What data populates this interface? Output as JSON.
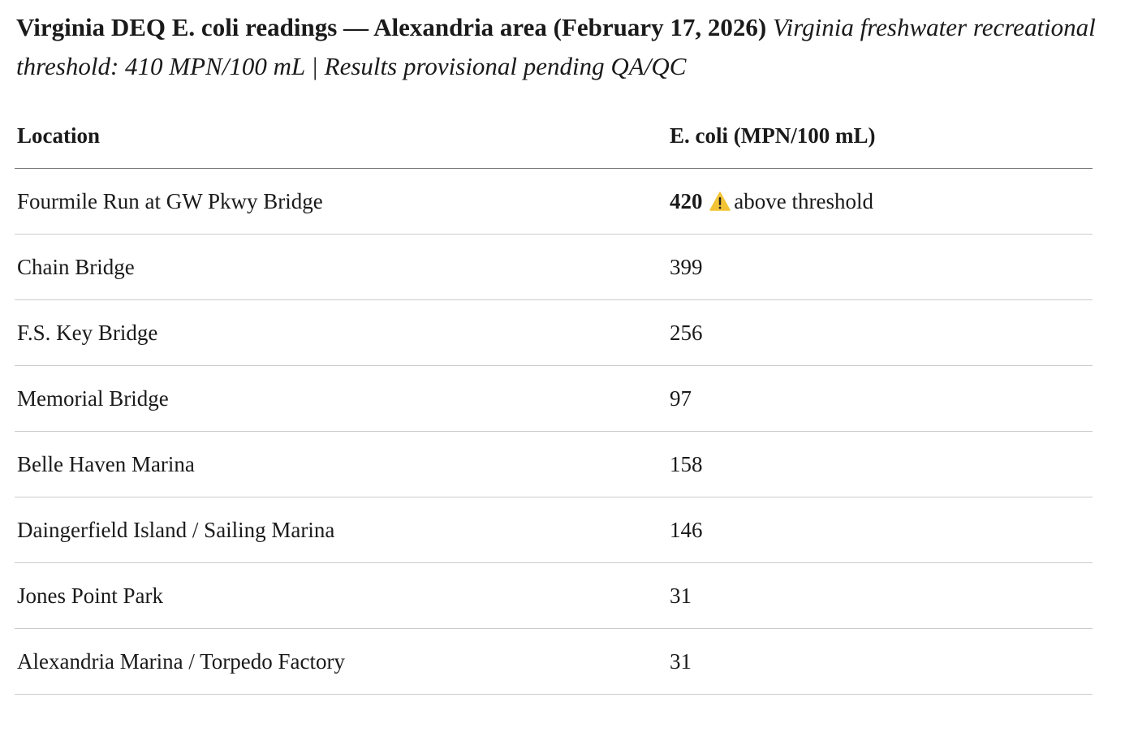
{
  "title": "Virginia DEQ E. coli readings — Alexandria area (February 17, 2026)",
  "subtitle": "Virginia freshwater recreational threshold: 410 MPN/100 mL | Results provisional pending QA/QC",
  "table": {
    "headers": [
      "Location",
      "E. coli (MPN/100 mL)"
    ],
    "rows": [
      {
        "location": "Fourmile Run at GW Pkwy Bridge",
        "value": "420",
        "note": "above threshold",
        "flag": "warning-icon"
      },
      {
        "location": "Chain Bridge",
        "value": "399"
      },
      {
        "location": "F.S. Key Bridge",
        "value": "256"
      },
      {
        "location": "Memorial Bridge",
        "value": "97"
      },
      {
        "location": "Belle Haven Marina",
        "value": "158"
      },
      {
        "location": "Daingerfield Island / Sailing Marina",
        "value": "146"
      },
      {
        "location": "Jones Point Park",
        "value": "31"
      },
      {
        "location": "Alexandria Marina / Torpedo Factory",
        "value": "31"
      }
    ]
  },
  "colors": {
    "warning": "#f2c335"
  }
}
